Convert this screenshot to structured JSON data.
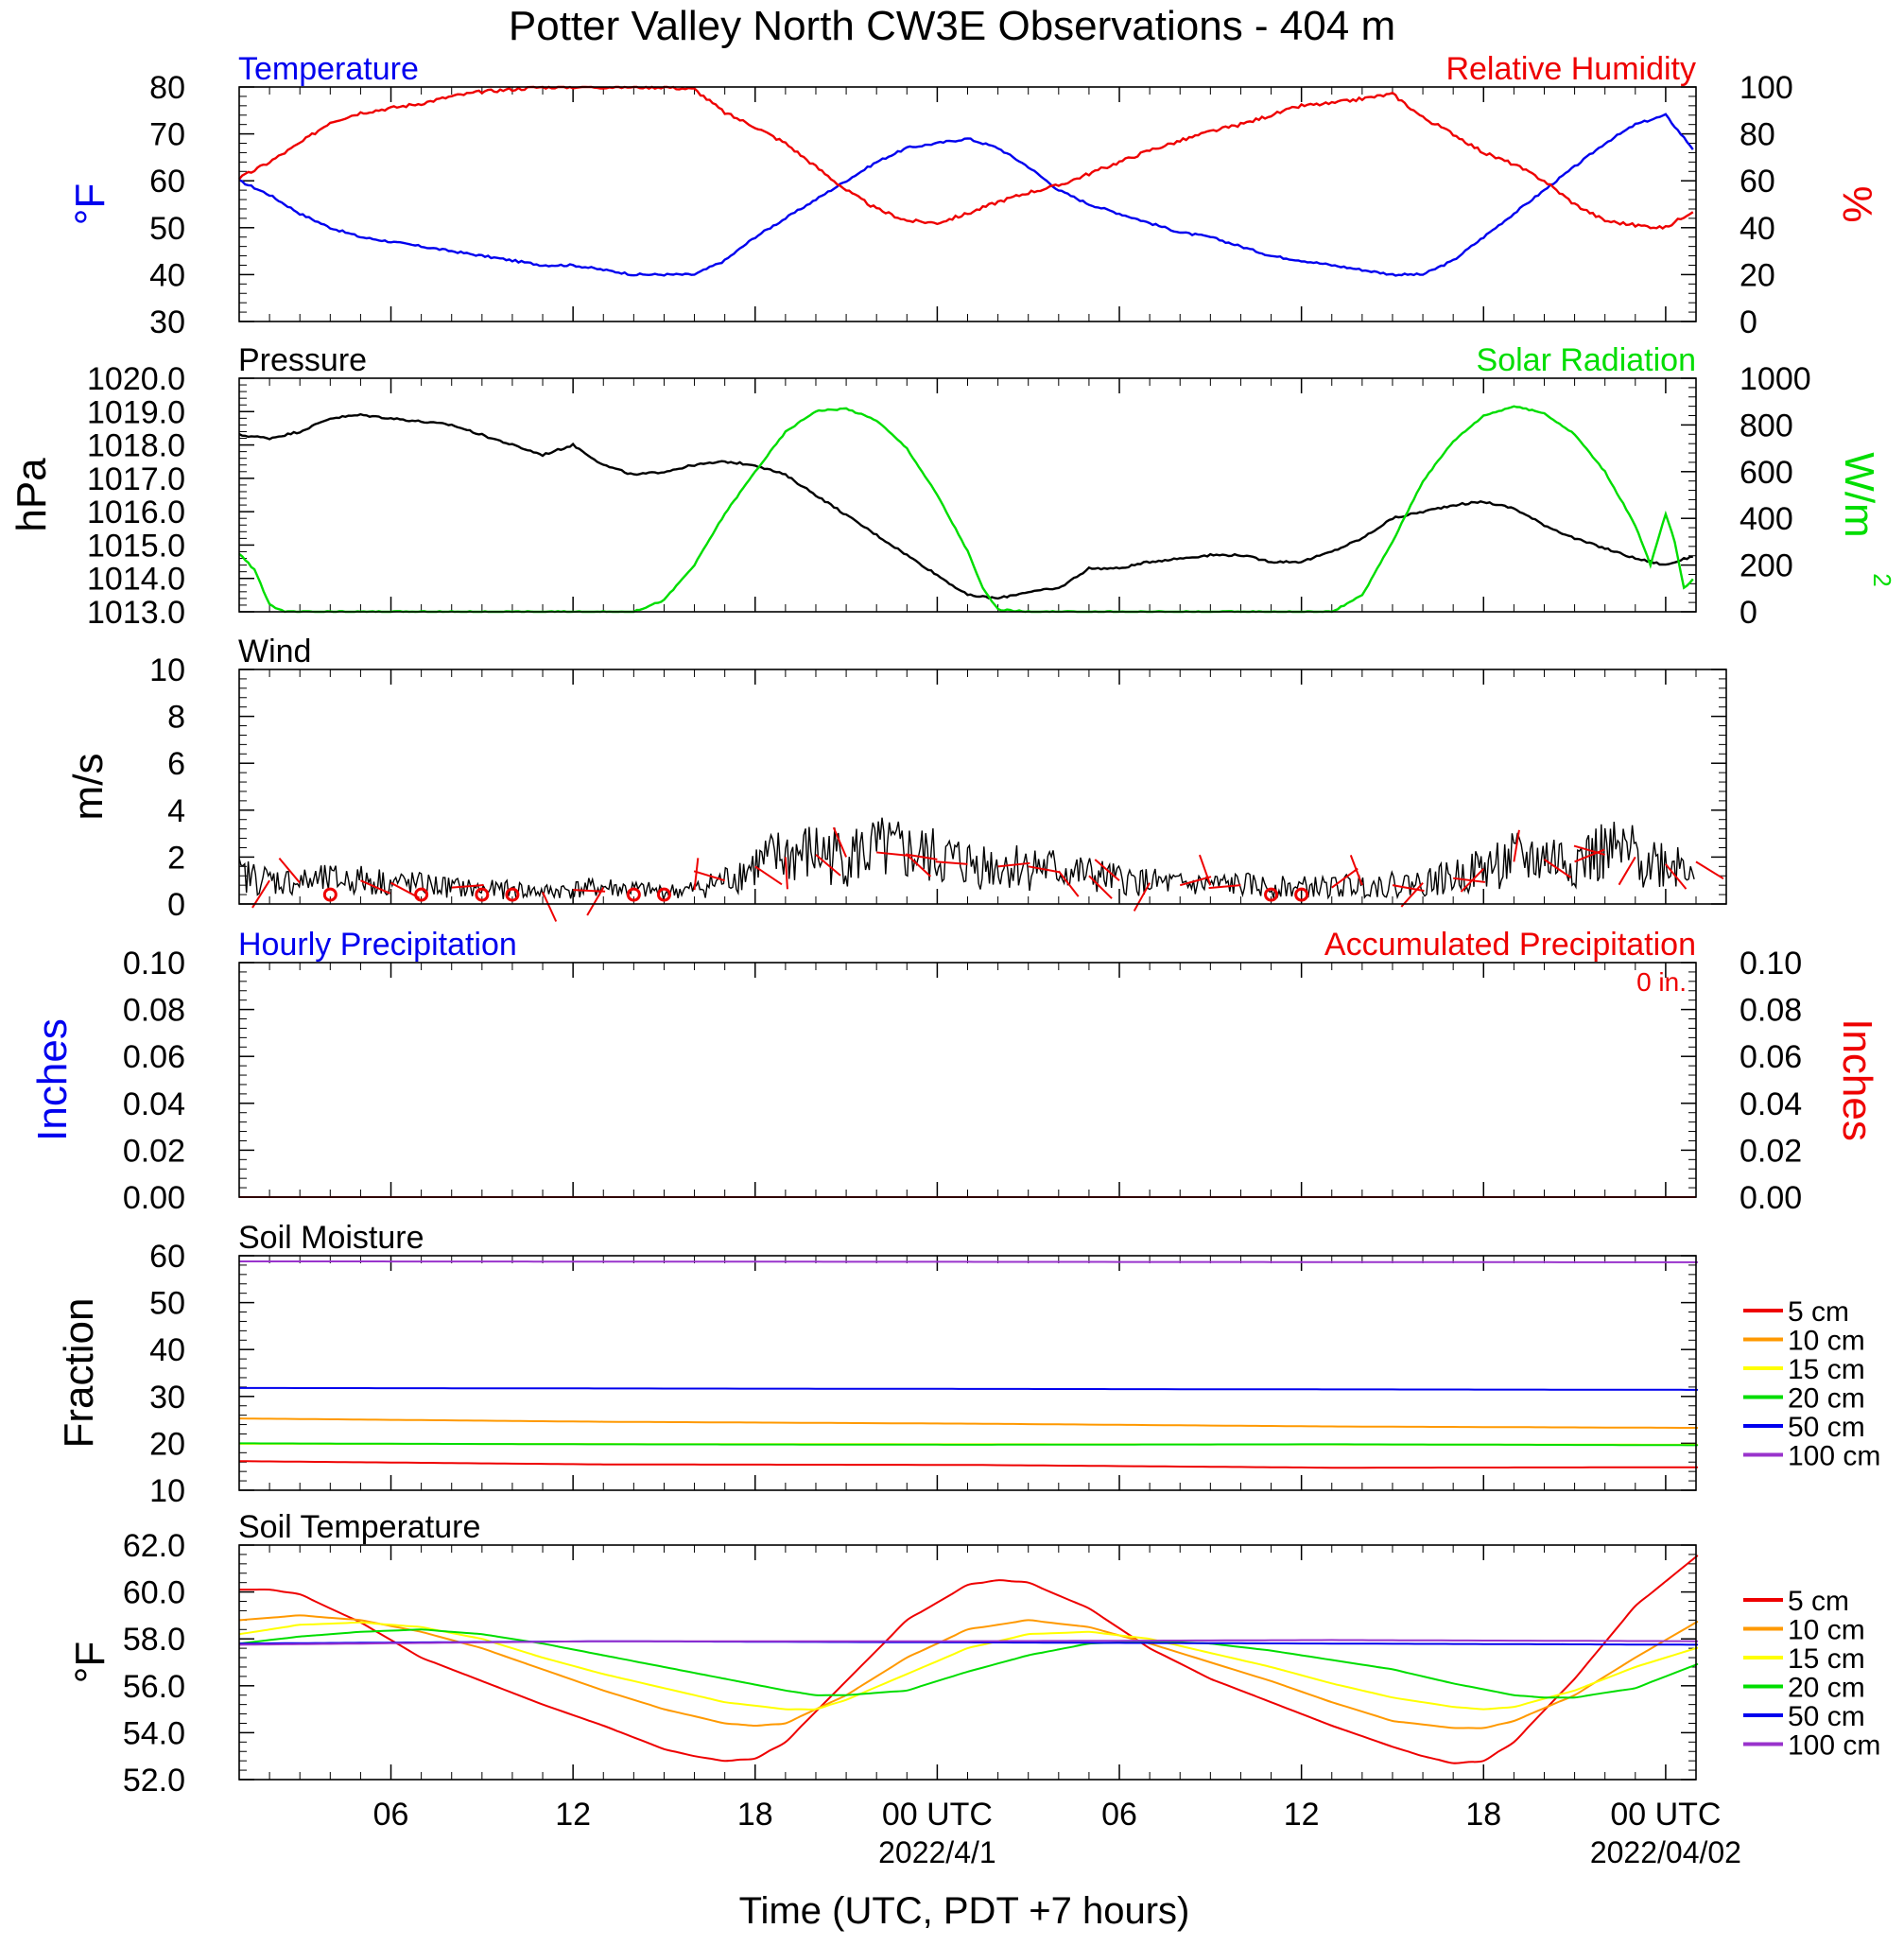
{
  "title": "Potter Valley North CW3E Observations - 404 m",
  "xlabel": "Time (UTC, PDT +7 hours)",
  "x_axis": {
    "range_hours": [
      0,
      48
    ],
    "tick_labels": [
      {
        "hour": 5,
        "label": "06"
      },
      {
        "hour": 11,
        "label": "12"
      },
      {
        "hour": 17,
        "label": "18"
      },
      {
        "hour": 23,
        "label": "00 UTC",
        "date": "2022/4/1"
      },
      {
        "hour": 29,
        "label": "06"
      },
      {
        "hour": 35,
        "label": "12"
      },
      {
        "hour": 41,
        "label": "18"
      },
      {
        "hour": 47,
        "label": "00 UTC",
        "date": "2022/04/02"
      }
    ]
  },
  "colors": {
    "blue": "#0000ee",
    "red": "#ee0000",
    "green": "#00dd00",
    "black": "#000000",
    "orange": "#ff9900",
    "yellow": "#ffff00",
    "purple": "#9933cc"
  },
  "chart_data": [
    {
      "type": "line",
      "title_left": "Temperature",
      "title_right": "Relative Humidity",
      "ylabel_left": "°F",
      "ylabel_right": "%",
      "ylim_left": [
        30,
        80
      ],
      "yticks_left": [
        "30",
        "40",
        "50",
        "60",
        "70",
        "80"
      ],
      "ylim_right": [
        0,
        100
      ],
      "yticks_right": [
        "0",
        "20",
        "40",
        "60",
        "80",
        "100"
      ],
      "series": [
        {
          "name": "Temperature",
          "axis": "left",
          "color": "#0000ee",
          "x": [
            0,
            1,
            2,
            3,
            4,
            5,
            6,
            7,
            8,
            9,
            10,
            11,
            12,
            13,
            14,
            15,
            16,
            17,
            18,
            19,
            20,
            21,
            22,
            23,
            24,
            25,
            26,
            27,
            28,
            29,
            30,
            31,
            32,
            33,
            34,
            35,
            36,
            37,
            38,
            39,
            40,
            41,
            42,
            43,
            44,
            45,
            46,
            47,
            48
          ],
          "y": [
            60,
            57,
            53,
            50,
            48,
            47,
            46,
            45,
            44,
            43,
            42,
            42,
            41,
            40,
            40,
            40,
            43,
            48,
            52,
            56,
            60,
            64,
            67,
            68,
            69,
            67,
            63,
            58,
            55,
            53,
            51,
            49,
            48,
            46,
            44,
            43,
            42,
            41,
            40,
            40,
            43,
            48,
            53,
            58,
            63,
            68,
            72,
            74,
            66
          ]
        },
        {
          "name": "Relative Humidity",
          "axis": "right",
          "color": "#ee0000",
          "x": [
            0,
            1,
            2,
            3,
            4,
            5,
            6,
            7,
            8,
            9,
            10,
            11,
            12,
            13,
            14,
            15,
            16,
            17,
            18,
            19,
            20,
            21,
            22,
            23,
            24,
            25,
            26,
            27,
            28,
            29,
            30,
            31,
            32,
            33,
            34,
            35,
            36,
            37,
            38,
            39,
            40,
            41,
            42,
            43,
            44,
            45,
            46,
            47,
            48
          ],
          "y": [
            61,
            68,
            76,
            85,
            89,
            91,
            93,
            96,
            98,
            99,
            100,
            100,
            100,
            100,
            100,
            99,
            89,
            83,
            76,
            66,
            56,
            48,
            43,
            42,
            46,
            51,
            55,
            58,
            63,
            68,
            73,
            77,
            81,
            84,
            88,
            92,
            93,
            95,
            97,
            87,
            80,
            72,
            67,
            60,
            50,
            43,
            41,
            40,
            48
          ]
        }
      ]
    },
    {
      "type": "line",
      "title_left": "Pressure",
      "title_right": "Solar Radiation",
      "ylabel_left": "hPa",
      "ylabel_right": "W/m",
      "ylim_left": [
        1013,
        1020
      ],
      "yticks_left": [
        "1013.0",
        "1014.0",
        "1015.0",
        "1016.0",
        "1017.0",
        "1018.0",
        "1019.0",
        "1020.0"
      ],
      "ylim_right": [
        0,
        1000
      ],
      "yticks_right": [
        "0",
        "200",
        "400",
        "600",
        "800",
        "1000"
      ],
      "series": [
        {
          "name": "Pressure",
          "axis": "left",
          "color": "#000000",
          "x": [
            0,
            1,
            2,
            3,
            4,
            5,
            6,
            7,
            8,
            9,
            10,
            11,
            12,
            13,
            14,
            15,
            16,
            17,
            18,
            19,
            20,
            21,
            22,
            23,
            24,
            25,
            26,
            27,
            28,
            29,
            30,
            31,
            32,
            33,
            34,
            35,
            36,
            37,
            38,
            39,
            40,
            41,
            42,
            43,
            44,
            45,
            46,
            47,
            48
          ],
          "y": [
            1018.3,
            1018.2,
            1018.4,
            1018.8,
            1018.9,
            1018.8,
            1018.7,
            1018.6,
            1018.3,
            1018.0,
            1017.7,
            1018.0,
            1017.4,
            1017.1,
            1017.2,
            1017.4,
            1017.5,
            1017.4,
            1017.1,
            1016.5,
            1015.9,
            1015.3,
            1014.7,
            1014.1,
            1013.5,
            1013.4,
            1013.6,
            1013.7,
            1014.3,
            1014.3,
            1014.5,
            1014.6,
            1014.7,
            1014.7,
            1014.5,
            1014.5,
            1014.8,
            1015.2,
            1015.8,
            1016.0,
            1016.2,
            1016.3,
            1016.1,
            1015.6,
            1015.2,
            1014.9,
            1014.6,
            1014.4,
            1014.7
          ]
        },
        {
          "name": "Solar Radiation",
          "axis": "right",
          "color": "#00dd00",
          "x": [
            0,
            0.5,
            1,
            1.5,
            2,
            3,
            4,
            5,
            6,
            7,
            8,
            9,
            10,
            11,
            12,
            13,
            14,
            15,
            16,
            17,
            18,
            19,
            20,
            21,
            22,
            23,
            24,
            24.5,
            25,
            26,
            27,
            28,
            29,
            30,
            31,
            32,
            33,
            34,
            35,
            36,
            37,
            38,
            39,
            40,
            41,
            42,
            43,
            44,
            45,
            46,
            46.5,
            47,
            47.3,
            47.6,
            48
          ],
          "y": [
            250,
            180,
            30,
            0,
            0,
            0,
            0,
            0,
            0,
            0,
            0,
            0,
            0,
            0,
            0,
            0,
            50,
            200,
            420,
            600,
            770,
            860,
            870,
            820,
            700,
            500,
            260,
            100,
            10,
            0,
            0,
            0,
            0,
            0,
            0,
            0,
            0,
            0,
            0,
            0,
            70,
            300,
            560,
            730,
            840,
            880,
            850,
            760,
            600,
            370,
            200,
            420,
            300,
            100,
            150
          ]
        }
      ]
    },
    {
      "type": "line",
      "title_left": "Wind",
      "ylabel_left": "m/s",
      "ylim_left": [
        0,
        10
      ],
      "yticks_left": [
        "0",
        "2",
        "4",
        "6",
        "8",
        "10"
      ],
      "series": [
        {
          "name": "Wind",
          "axis": "left",
          "color": "#000000",
          "x": [
            0,
            1,
            2,
            3,
            4,
            5,
            6,
            7,
            8,
            9,
            10,
            11,
            12,
            13,
            14,
            15,
            16,
            17,
            18,
            19,
            20,
            21,
            22,
            23,
            24,
            25,
            26,
            27,
            28,
            29,
            30,
            31,
            32,
            33,
            34,
            35,
            36,
            37,
            38,
            39,
            40,
            41,
            42,
            43,
            44,
            45,
            46,
            47,
            48
          ],
          "y": [
            1.2,
            1.0,
            0.9,
            1.0,
            1.0,
            0.9,
            0.8,
            0.7,
            0.6,
            0.6,
            0.5,
            0.6,
            0.7,
            0.6,
            0.5,
            0.6,
            1.0,
            1.6,
            2.0,
            2.1,
            2.0,
            2.2,
            2.1,
            1.9,
            1.7,
            1.6,
            1.6,
            1.4,
            1.2,
            1.0,
            0.9,
            0.8,
            0.8,
            0.8,
            0.7,
            0.7,
            0.7,
            0.8,
            0.8,
            0.9,
            1.1,
            1.5,
            1.8,
            1.9,
            1.8,
            2.1,
            2.0,
            1.7,
            1.8
          ]
        }
      ],
      "calm_circles_hours": [
        3,
        6,
        8,
        9,
        13,
        14,
        34,
        35
      ]
    },
    {
      "type": "line",
      "title_left": "Hourly Precipitation",
      "title_right": "Accumulated Precipitation",
      "annotation": "0 in.",
      "ylabel_left": "Inches",
      "ylabel_right": "Inches",
      "ylim_left": [
        0,
        0.1
      ],
      "yticks_left": [
        "0.00",
        "0.02",
        "0.04",
        "0.06",
        "0.08",
        "0.10"
      ],
      "ylim_right": [
        0,
        0.1
      ],
      "yticks_right": [
        "0.00",
        "0.02",
        "0.04",
        "0.06",
        "0.08",
        "0.10"
      ],
      "series": [
        {
          "name": "Hourly Precipitation",
          "axis": "left",
          "color": "#0000ee",
          "x": [
            0,
            48
          ],
          "y": [
            0,
            0
          ]
        },
        {
          "name": "Accumulated Precipitation",
          "axis": "left",
          "color": "#ee0000",
          "x": [
            0,
            48
          ],
          "y": [
            0,
            0
          ]
        }
      ]
    },
    {
      "type": "line",
      "title_left": "Soil Moisture",
      "ylabel_left": "Fraction",
      "ylim_left": [
        10,
        60
      ],
      "yticks_left": [
        "10",
        "20",
        "30",
        "40",
        "50",
        "60"
      ],
      "legend": "right",
      "series": [
        {
          "name": "5 cm",
          "color": "#ee0000",
          "x": [
            0,
            12,
            24,
            36,
            48
          ],
          "y": [
            16.2,
            15.5,
            15.4,
            14.8,
            14.9
          ]
        },
        {
          "name": "10 cm",
          "color": "#ff9900",
          "x": [
            0,
            12,
            24,
            36,
            48
          ],
          "y": [
            25.3,
            24.6,
            24.2,
            23.6,
            23.3
          ]
        },
        {
          "name": "15 cm",
          "color": "#ffff00",
          "x": [
            0,
            48
          ],
          "y": [
            19.9,
            19.7
          ]
        },
        {
          "name": "20 cm",
          "color": "#00dd00",
          "x": [
            0,
            12,
            24,
            36,
            48
          ],
          "y": [
            20.0,
            19.8,
            19.7,
            19.8,
            19.6
          ]
        },
        {
          "name": "50 cm",
          "color": "#0000ee",
          "x": [
            0,
            24,
            48
          ],
          "y": [
            31.8,
            31.6,
            31.4
          ]
        },
        {
          "name": "100 cm",
          "color": "#9933cc",
          "x": [
            0,
            24,
            48
          ],
          "y": [
            58.8,
            58.7,
            58.6
          ]
        }
      ]
    },
    {
      "type": "line",
      "title_left": "Soil Temperature",
      "ylabel_left": "°F",
      "ylim_left": [
        52,
        62
      ],
      "yticks_left": [
        "52.0",
        "54.0",
        "56.0",
        "58.0",
        "60.0",
        "62.0"
      ],
      "legend": "right",
      "series": [
        {
          "name": "5 cm",
          "color": "#ee0000",
          "x": [
            0,
            1,
            2,
            4,
            6,
            8,
            10,
            12,
            14,
            15,
            16,
            17,
            18,
            20,
            22,
            24,
            25,
            26,
            28,
            30,
            32,
            34,
            36,
            38,
            39,
            40,
            41,
            42,
            44,
            46,
            48
          ],
          "y": [
            60.1,
            60.1,
            59.9,
            58.7,
            57.2,
            56.2,
            55.2,
            54.3,
            53.3,
            53.0,
            52.8,
            52.9,
            53.6,
            56.2,
            58.8,
            60.3,
            60.5,
            60.4,
            59.3,
            57.6,
            56.3,
            55.3,
            54.3,
            53.4,
            53.0,
            52.7,
            52.8,
            53.6,
            56.3,
            59.4,
            61.5
          ]
        },
        {
          "name": "10 cm",
          "color": "#ff9900",
          "x": [
            0,
            2,
            4,
            6,
            8,
            10,
            12,
            14,
            16,
            17,
            18,
            20,
            22,
            24,
            26,
            28,
            30,
            32,
            34,
            36,
            38,
            40,
            41,
            42,
            44,
            46,
            48
          ],
          "y": [
            58.8,
            59.0,
            58.8,
            58.3,
            57.6,
            56.7,
            55.8,
            55.0,
            54.4,
            54.3,
            54.4,
            55.6,
            57.2,
            58.4,
            58.8,
            58.5,
            57.8,
            57.0,
            56.2,
            55.3,
            54.5,
            54.2,
            54.2,
            54.5,
            55.6,
            57.2,
            58.7
          ]
        },
        {
          "name": "15 cm",
          "color": "#ffff00",
          "x": [
            0,
            2,
            4,
            6,
            8,
            10,
            12,
            14,
            16,
            18,
            19,
            20,
            22,
            24,
            26,
            28,
            30,
            32,
            34,
            36,
            38,
            40,
            41,
            42,
            44,
            46,
            48
          ],
          "y": [
            58.2,
            58.6,
            58.7,
            58.5,
            58.0,
            57.2,
            56.5,
            55.9,
            55.3,
            55.0,
            55.0,
            55.4,
            56.5,
            57.6,
            58.2,
            58.3,
            58.0,
            57.4,
            56.8,
            56.1,
            55.5,
            55.1,
            55.0,
            55.1,
            55.8,
            56.8,
            57.6
          ]
        },
        {
          "name": "20 cm",
          "color": "#00dd00",
          "x": [
            0,
            2,
            4,
            6,
            8,
            10,
            12,
            14,
            16,
            18,
            19,
            20,
            22,
            24,
            26,
            28,
            30,
            32,
            34,
            36,
            38,
            40,
            42,
            43,
            44,
            46,
            48
          ],
          "y": [
            57.8,
            58.1,
            58.3,
            58.4,
            58.2,
            57.8,
            57.3,
            56.8,
            56.3,
            55.8,
            55.6,
            55.6,
            55.8,
            56.6,
            57.3,
            57.8,
            57.9,
            57.8,
            57.5,
            57.1,
            56.7,
            56.1,
            55.6,
            55.5,
            55.5,
            55.9,
            56.9
          ]
        },
        {
          "name": "50 cm",
          "color": "#0000ee",
          "x": [
            0,
            12,
            24,
            36,
            48
          ],
          "y": [
            57.8,
            57.9,
            57.85,
            57.8,
            57.75
          ]
        },
        {
          "name": "100 cm",
          "color": "#9933cc",
          "x": [
            0,
            12,
            24,
            36,
            48
          ],
          "y": [
            57.75,
            57.9,
            57.9,
            57.95,
            57.9
          ]
        }
      ]
    }
  ]
}
